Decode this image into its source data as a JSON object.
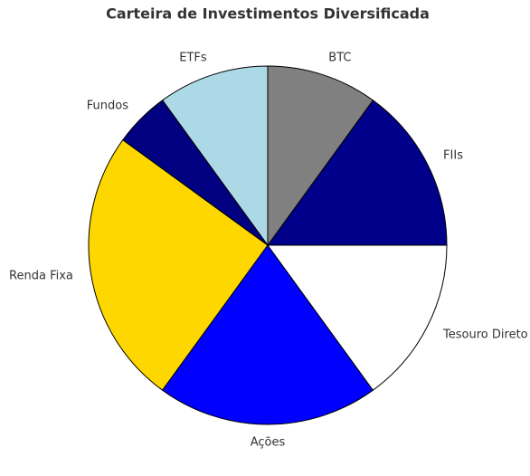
{
  "chart_data": {
    "type": "pie",
    "title": "Carteira de Investimentos Diversificada",
    "categories": [
      "Renda Fixa",
      "Ações",
      "Tesouro Direto",
      "FIIs",
      "BTC",
      "ETFs",
      "Fundos"
    ],
    "values": [
      25,
      20,
      15,
      15,
      10,
      10,
      5
    ],
    "colors": [
      "#FFD700",
      "#0000FF",
      "#FFFFFF",
      "#00008B",
      "#808080",
      "#ADD8E6",
      "#000080"
    ],
    "startangle": 144
  }
}
